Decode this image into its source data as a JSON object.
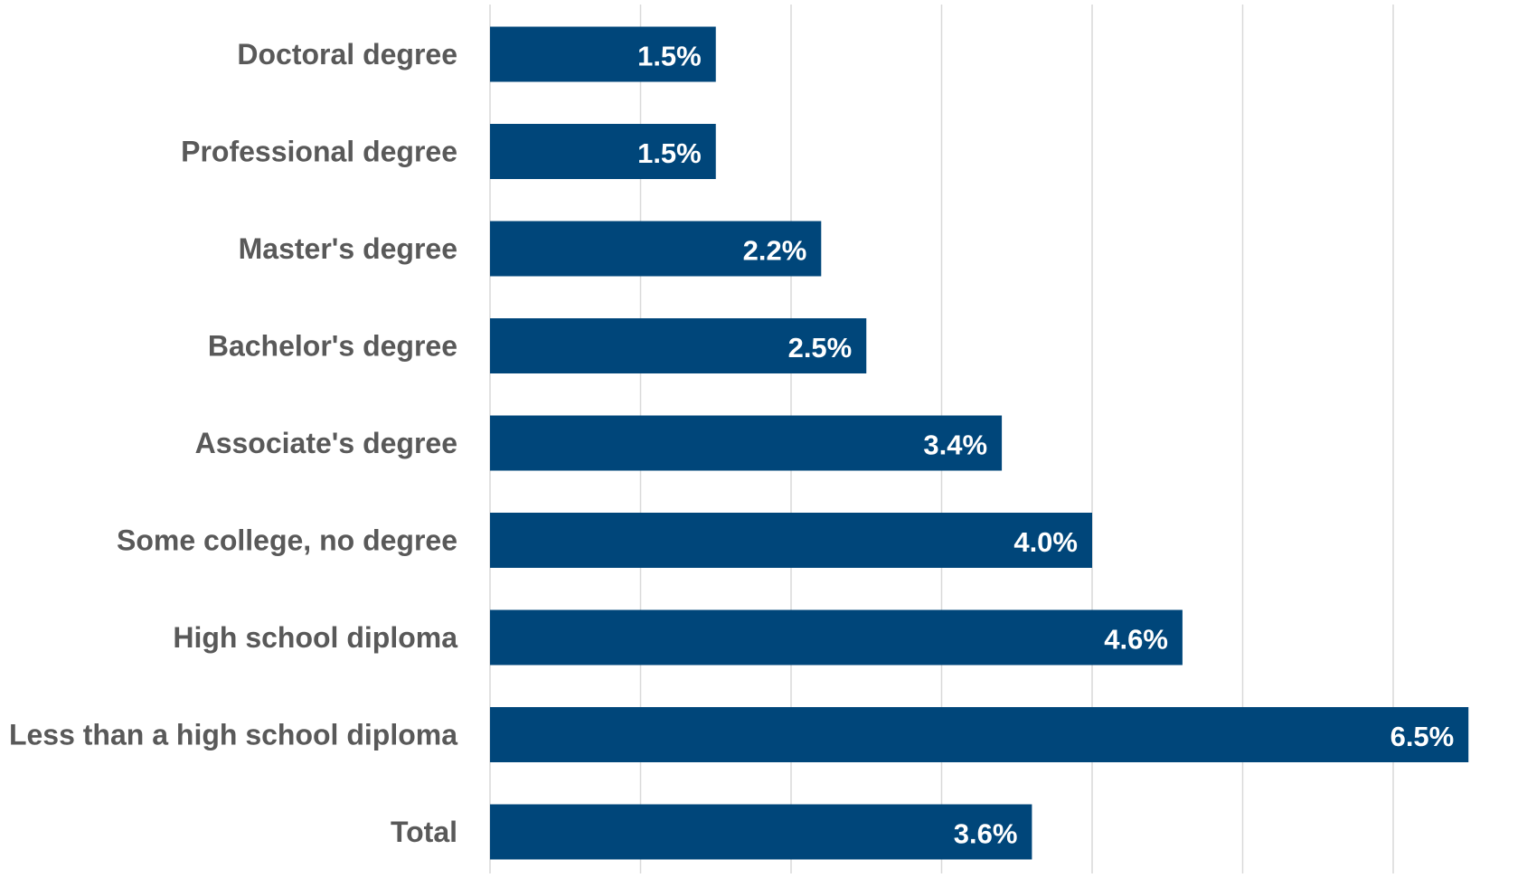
{
  "chart_data": {
    "type": "bar",
    "orientation": "horizontal",
    "title": "",
    "xlabel": "",
    "ylabel": "",
    "categories": [
      "Doctoral degree",
      "Professional degree",
      "Master's degree",
      "Bachelor's degree",
      "Associate's degree",
      "Some college, no degree",
      "High school diploma",
      "Less than a high school diploma",
      "Total"
    ],
    "values": [
      1.5,
      1.5,
      2.2,
      2.5,
      3.4,
      4.0,
      4.6,
      6.5,
      3.6
    ],
    "data_labels": [
      "1.5%",
      "1.5%",
      "2.2%",
      "2.5%",
      "3.4%",
      "4.0%",
      "4.6%",
      "6.5%",
      "3.6%"
    ],
    "xlim": [
      0,
      7
    ],
    "grid": true,
    "legend": "none",
    "colors": {
      "bar": "#00467A",
      "category_label": "#595959",
      "data_label": "#FFFFFF",
      "gridline": "#D9D9D9"
    }
  }
}
